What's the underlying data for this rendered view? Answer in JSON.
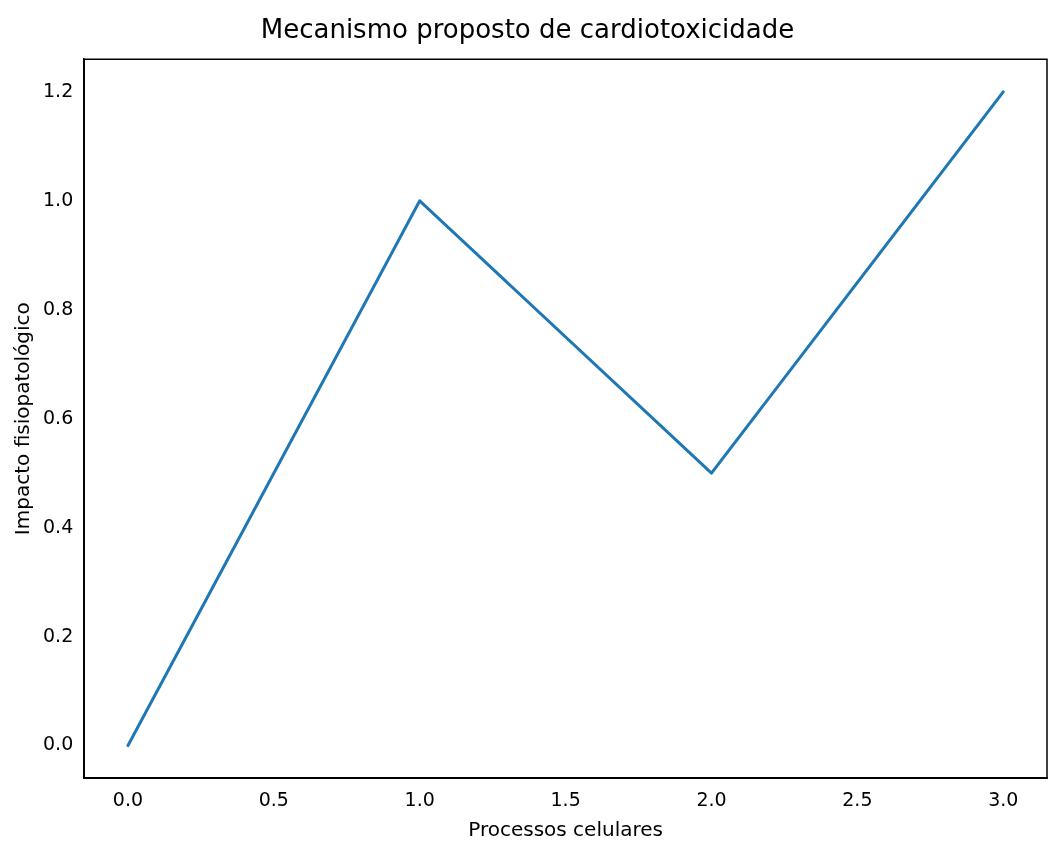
{
  "chart_data": {
    "type": "line",
    "title": "Mecanismo proposto de cardiotoxicidade",
    "xlabel": "Processos celulares",
    "ylabel": "Impacto fisiopatológico",
    "x": [
      0,
      1,
      2,
      3
    ],
    "series": [
      {
        "color": "#1f77b4",
        "values": [
          0,
          1,
          0.5,
          1.2
        ]
      }
    ],
    "xlim": [
      -0.15,
      3.15
    ],
    "ylim": [
      -0.06,
      1.26
    ],
    "xticks": [
      {
        "value": 0,
        "label": "0.0"
      },
      {
        "value": 0.5,
        "label": "0.5"
      },
      {
        "value": 1,
        "label": "1.0"
      },
      {
        "value": 1.5,
        "label": "1.5"
      },
      {
        "value": 2,
        "label": "2.0"
      },
      {
        "value": 2.5,
        "label": "2.5"
      },
      {
        "value": 3,
        "label": "3.0"
      }
    ],
    "yticks": [
      {
        "value": 0,
        "label": "0.0"
      },
      {
        "value": 0.2,
        "label": "0.2"
      },
      {
        "value": 0.4,
        "label": "0.4"
      },
      {
        "value": 0.6,
        "label": "0.6"
      },
      {
        "value": 0.8,
        "label": "0.8"
      },
      {
        "value": 1,
        "label": "1.0"
      },
      {
        "value": 1.2,
        "label": "1.2"
      }
    ],
    "grid": false,
    "legend": false,
    "marker": "none",
    "line_style": "solid"
  }
}
